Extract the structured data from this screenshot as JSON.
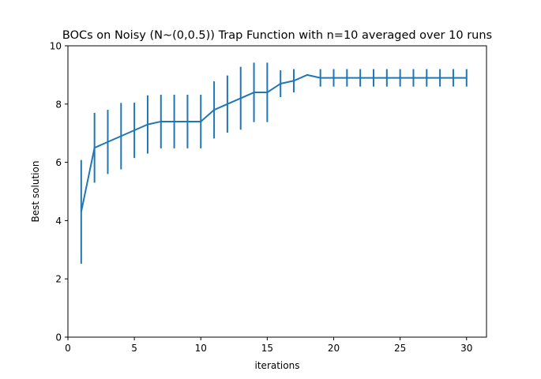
{
  "chart_data": {
    "type": "line",
    "title": "BOCs on Noisy (N~(0,0.5)) Trap Function with n=10 averaged over 10 runs",
    "xlabel": "iterations",
    "ylabel": "Best solution",
    "xlim": [
      0,
      31.5
    ],
    "ylim": [
      0,
      10
    ],
    "xticks": [
      0,
      5,
      10,
      15,
      20,
      25,
      30
    ],
    "yticks": [
      0,
      2,
      4,
      6,
      8,
      10
    ],
    "grid": false,
    "legend": "none",
    "color": "#1f77b4",
    "series": [
      {
        "x": [
          1,
          2,
          3,
          4,
          5,
          6,
          7,
          8,
          9,
          10,
          11,
          12,
          13,
          14,
          15,
          16,
          17,
          18,
          19,
          20,
          21,
          22,
          23,
          24,
          25,
          26,
          27,
          28,
          29,
          30
        ],
        "values": [
          4.3,
          6.5,
          6.7,
          6.9,
          7.1,
          7.3,
          7.4,
          7.4,
          7.4,
          7.4,
          7.8,
          8.0,
          8.2,
          8.4,
          8.4,
          8.7,
          8.8,
          9.0,
          8.9,
          8.9,
          8.9,
          8.9,
          8.9,
          8.9,
          8.9,
          8.9,
          8.9,
          8.9,
          8.9,
          8.9
        ],
        "errors": [
          1.78,
          1.2,
          1.1,
          1.14,
          0.95,
          1.0,
          0.92,
          0.92,
          0.92,
          0.92,
          0.98,
          0.98,
          1.08,
          1.02,
          1.02,
          0.46,
          0.4,
          0.0,
          0.3,
          0.3,
          0.3,
          0.3,
          0.3,
          0.3,
          0.3,
          0.3,
          0.3,
          0.3,
          0.3,
          0.3
        ]
      }
    ]
  }
}
